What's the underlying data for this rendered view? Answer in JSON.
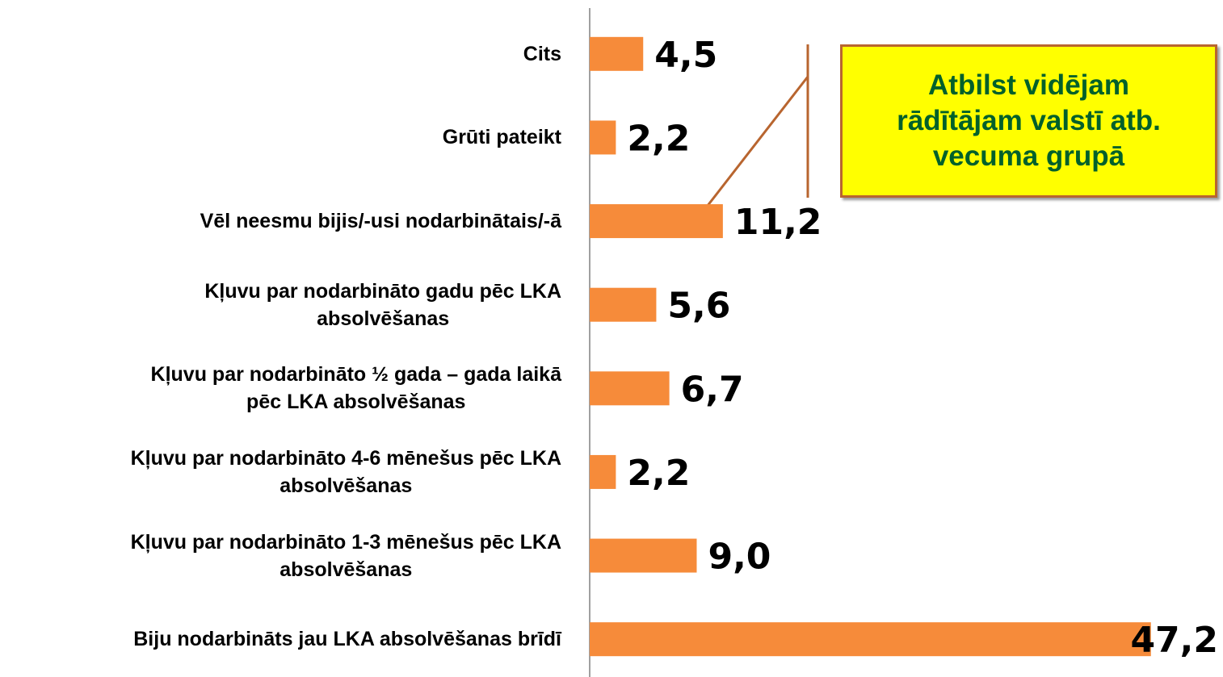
{
  "chart_data": {
    "type": "barh",
    "categories": [
      "Cits",
      "Grūti pateikt",
      "Vēl neesmu bijis/-usi nodarbinātais/-ā",
      "Kļuvu par nodarbināto gadu pēc LKA\nabsolvēšanas",
      "Kļuvu par nodarbināto ½ gada – gada laikā\npēc LKA absolvēšanas",
      "Kļuvu par nodarbināto 4-6 mēnešus pēc LKA\nabsolvēšanas",
      "Kļuvu par nodarbināto 1-3 mēnešus pēc LKA\nabsolvēšanas",
      "Biju nodarbināts jau LKA absolvēšanas brīdī"
    ],
    "values": [
      4.5,
      2.2,
      11.2,
      5.6,
      6.7,
      2.2,
      9.0,
      47.2
    ],
    "value_labels": [
      "4,5",
      "2,2",
      "11,2",
      "5,6",
      "6,7",
      "2,2",
      "9,0",
      "47,2"
    ],
    "color": "#f68b3a",
    "xlim": [
      0,
      50
    ],
    "annotation": "Atbilst vidējam\nrādītājam valstī atb.\nvecuma grupā"
  }
}
